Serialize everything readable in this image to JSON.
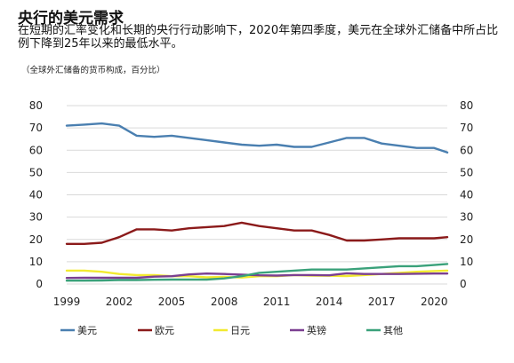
{
  "header": {
    "title": "央行的美元需求",
    "subtitle": "在短期的汇率变化和长期的央行行动影响下，2020年第四季度，美元在全球外汇储备中所占比例下降到25年以来的最低水平。",
    "note": "（全球外汇储备的货币构成，百分比）"
  },
  "chart_data": {
    "type": "line",
    "title": "",
    "xlabel": "",
    "ylabel": "",
    "ylim": [
      0,
      80
    ],
    "xlim": [
      1999,
      2020.75
    ],
    "y_ticks": [
      0,
      10,
      20,
      30,
      40,
      50,
      60,
      70,
      80
    ],
    "x_ticks": [
      1999,
      2002,
      2005,
      2008,
      2011,
      2014,
      2017,
      2020
    ],
    "grid": "horizontal",
    "dual_y_axis": true,
    "legend_position": "bottom",
    "x": [
      1999,
      2000,
      2001,
      2002,
      2003,
      2004,
      2005,
      2006,
      2007,
      2008,
      2009,
      2010,
      2011,
      2012,
      2013,
      2014,
      2015,
      2016,
      2017,
      2018,
      2019,
      2020,
      2020.75
    ],
    "series": [
      {
        "name": "美元",
        "color": "#4a7fb0",
        "values": [
          71,
          71.5,
          72,
          71,
          66.5,
          66,
          66.5,
          65.5,
          64.5,
          63.5,
          62.5,
          62,
          62.5,
          61.5,
          61.5,
          63.5,
          65.5,
          65.5,
          63,
          62,
          61,
          61,
          59
        ]
      },
      {
        "name": "欧元",
        "color": "#8b1a1a",
        "values": [
          18,
          18,
          18.5,
          21,
          24.5,
          24.5,
          24,
          25,
          25.5,
          26,
          27.5,
          26,
          25,
          24,
          24,
          22,
          19.5,
          19.5,
          20,
          20.5,
          20.5,
          20.5,
          21
        ]
      },
      {
        "name": "日元",
        "color": "#f2ea30",
        "values": [
          6,
          6,
          5.5,
          4.5,
          4,
          4,
          3.5,
          3.5,
          3,
          3.2,
          2.9,
          3.5,
          3.5,
          4,
          3.8,
          3.7,
          3.6,
          4,
          4.5,
          5,
          5.5,
          5.8,
          6
        ]
      },
      {
        "name": "英镑",
        "color": "#7b3f91",
        "values": [
          2.7,
          2.8,
          2.8,
          2.8,
          2.8,
          3.3,
          3.5,
          4.3,
          4.7,
          4.5,
          4.2,
          3.9,
          3.8,
          4,
          4,
          3.9,
          4.8,
          4.5,
          4.5,
          4.5,
          4.6,
          4.7,
          4.7
        ]
      },
      {
        "name": "其他",
        "color": "#3aa17a",
        "values": [
          1.5,
          1.5,
          1.6,
          1.8,
          1.8,
          1.9,
          2,
          2,
          2,
          2.5,
          3.5,
          5,
          5.5,
          6,
          6.5,
          6.5,
          6.5,
          7,
          7.5,
          8,
          8,
          8.5,
          9
        ]
      }
    ]
  }
}
